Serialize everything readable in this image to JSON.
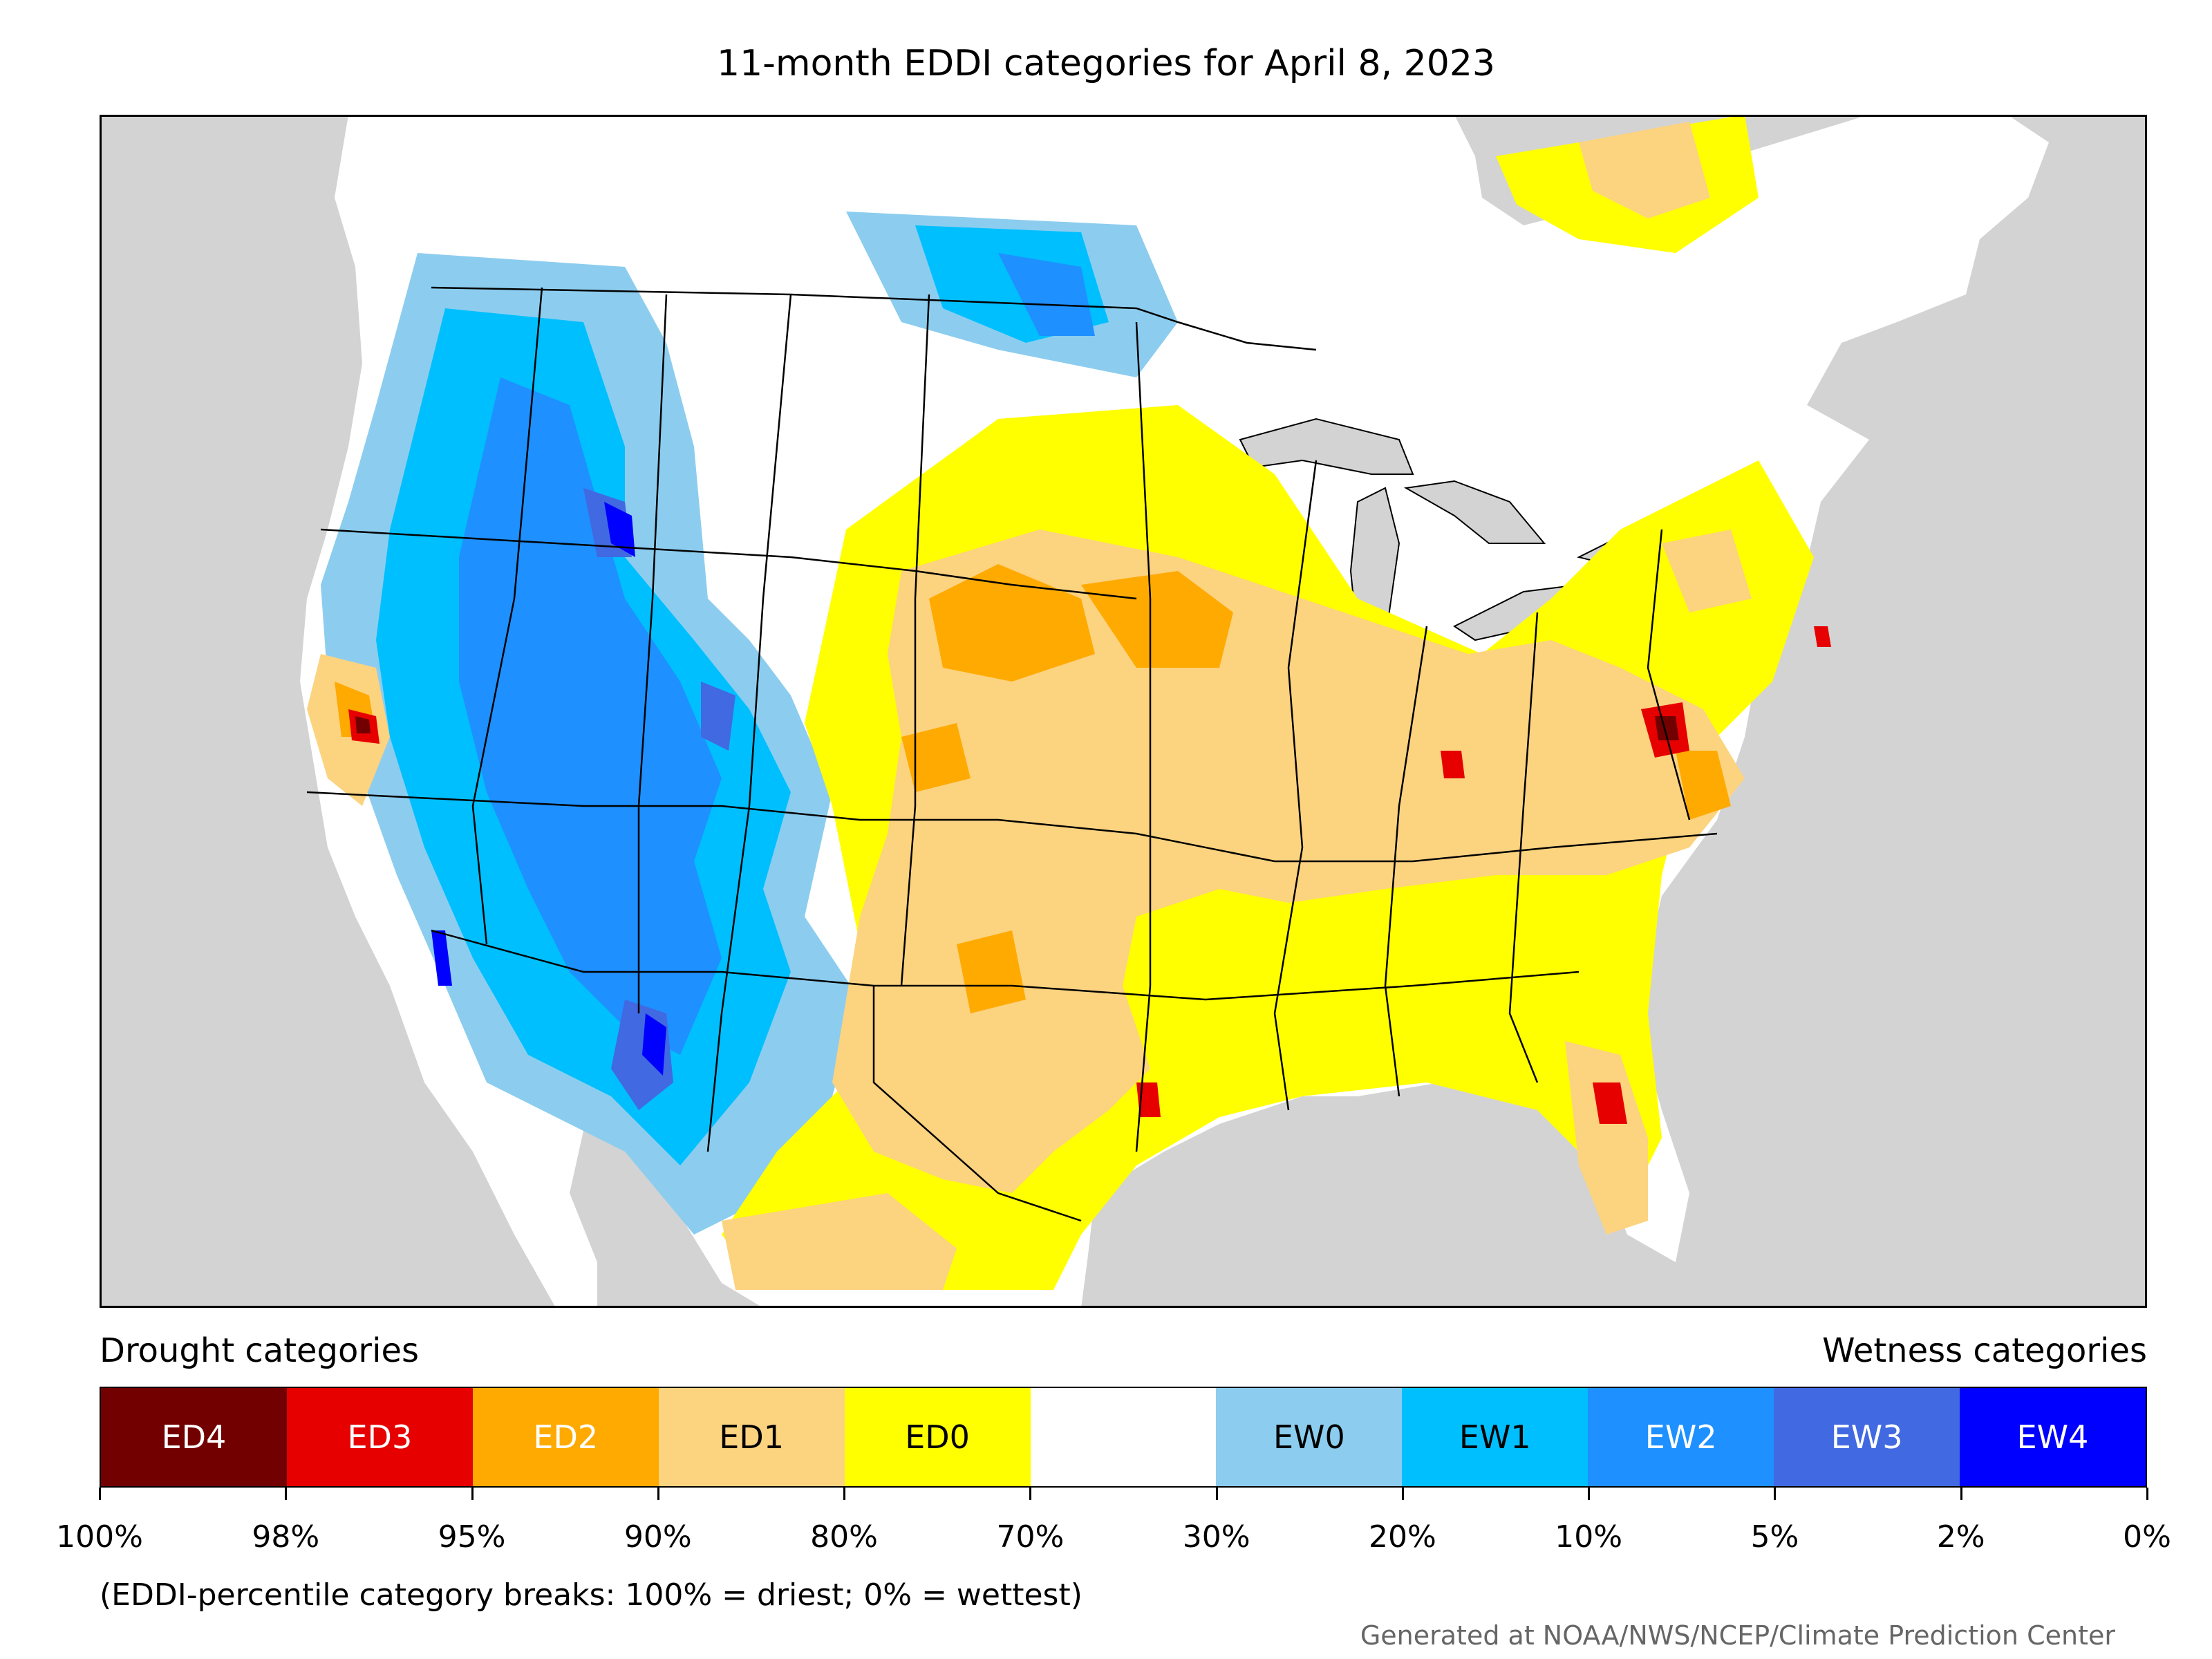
{
  "title": "11-month EDDI categories for April 8, 2023",
  "legend": {
    "drought_heading": "Drought categories",
    "wetness_heading": "Wetness categories",
    "categories": [
      {
        "label": "ED4",
        "color": "#730000",
        "text_color": "#ffffff"
      },
      {
        "label": "ED3",
        "color": "#e60000",
        "text_color": "#ffffff"
      },
      {
        "label": "ED2",
        "color": "#ffaa00",
        "text_color": "#ffffff"
      },
      {
        "label": "ED1",
        "color": "#fcd37f",
        "text_color": "#000000"
      },
      {
        "label": "ED0",
        "color": "#ffff00",
        "text_color": "#000000"
      },
      {
        "label": "",
        "color": "#ffffff",
        "text_color": "#000000"
      },
      {
        "label": "EW0",
        "color": "#8ccdef",
        "text_color": "#000000"
      },
      {
        "label": "EW1",
        "color": "#00bfff",
        "text_color": "#000000"
      },
      {
        "label": "EW2",
        "color": "#1e90ff",
        "text_color": "#ffffff"
      },
      {
        "label": "EW3",
        "color": "#4169e1",
        "text_color": "#ffffff"
      },
      {
        "label": "EW4",
        "color": "#0000ff",
        "text_color": "#ffffff"
      }
    ],
    "ticks": [
      "100%",
      "98%",
      "95%",
      "90%",
      "80%",
      "70%",
      "30%",
      "20%",
      "10%",
      "5%",
      "2%",
      "0%"
    ]
  },
  "footnote": "(EDDI-percentile category breaks: 100% = driest; 0% = wettest)",
  "credit": "Generated at NOAA/NWS/NCEP/Climate Prediction Center",
  "map": {
    "ocean_color": "#d3d3d3",
    "land_color": "#ffffff",
    "border_color": "#000000"
  }
}
